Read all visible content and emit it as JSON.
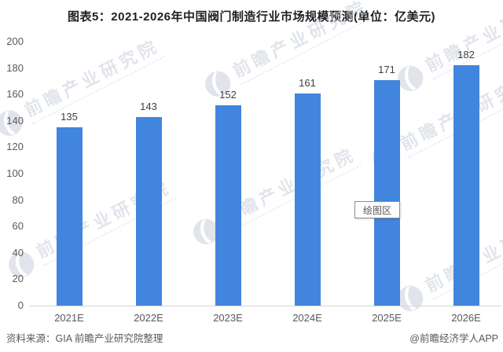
{
  "title": "图表5：2021-2026年中国阀门制造行业市场规模预测(单位：亿美元)",
  "chart_data": {
    "type": "bar",
    "title": "2021-2026年中国阀门制造行业市场规模预测",
    "unit_label": "单位：亿美元",
    "categories": [
      "2021E",
      "2022E",
      "2023E",
      "2024E",
      "2025E",
      "2026E"
    ],
    "values": [
      135,
      143,
      152,
      161,
      171,
      182
    ],
    "xlabel": "",
    "ylabel": "",
    "ylim": [
      0,
      200
    ],
    "ytick_step": 20,
    "grid": false,
    "legend": "none",
    "bar_color": "#4285DE"
  },
  "tooltip": {
    "label": "绘图区"
  },
  "watermark": {
    "text": "前瞻产业研究院"
  },
  "footer": {
    "source": "资料来源：GIA 前瞻产业研究院整理",
    "credit": "@前瞻经济学人APP"
  },
  "colors": {
    "bar": "#4285DE",
    "axis_text": "#595959",
    "axis_line": "#d6d6d6",
    "title_text": "#1f1f1f",
    "watermark": "#c9d0dc"
  }
}
